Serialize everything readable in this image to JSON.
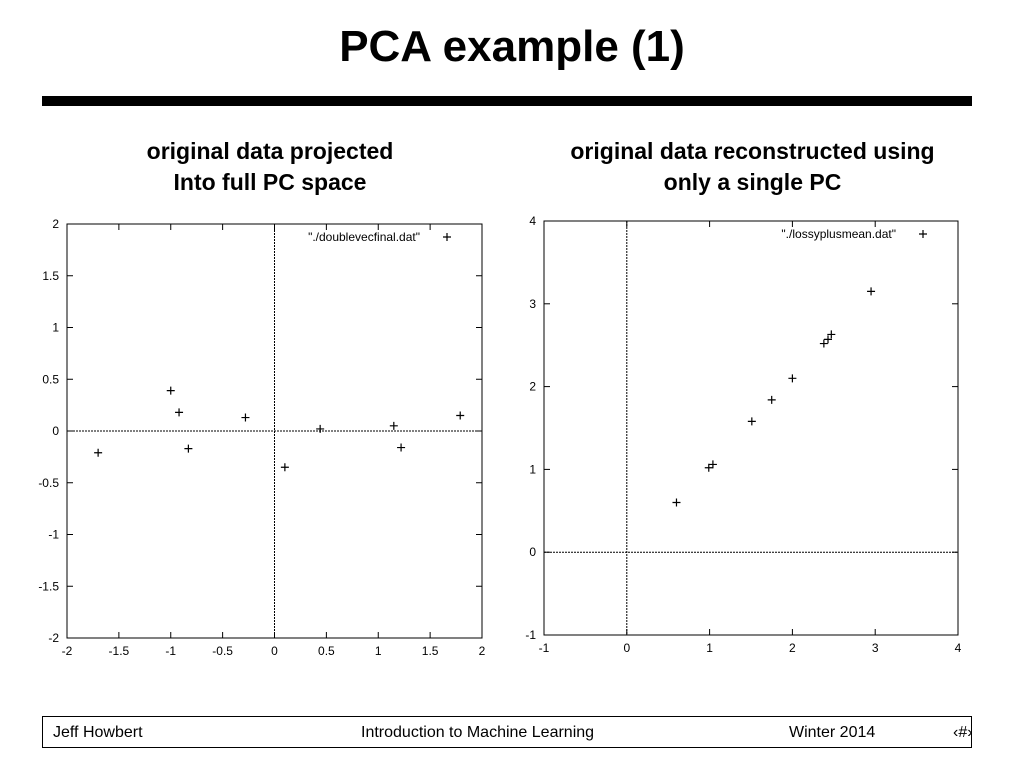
{
  "slide": {
    "title": "PCA example (1)",
    "left_caption": [
      "original data projected",
      "Into full PC space"
    ],
    "right_caption": [
      "original data reconstructed using",
      "only a single PC"
    ]
  },
  "footer": {
    "author": "Jeff Howbert",
    "course": "Introduction to Machine Learning",
    "term": "Winter 2014",
    "page": "‹#›"
  },
  "chart_data": [
    {
      "type": "scatter",
      "series": [
        {
          "name": "\"./doublevecfinal.dat\"",
          "x": [
            -1.7,
            -1.0,
            -0.92,
            -0.83,
            -0.28,
            0.1,
            0.44,
            1.15,
            1.22,
            1.79
          ],
          "y": [
            -0.21,
            0.39,
            0.18,
            -0.17,
            0.13,
            -0.35,
            0.02,
            0.05,
            -0.16,
            0.15
          ]
        }
      ],
      "xlim": [
        -2,
        2
      ],
      "ylim": [
        -2,
        2
      ],
      "xticks": [
        "-2",
        "-1.5",
        "-1",
        "-0.5",
        "0",
        "0.5",
        "1",
        "1.5",
        "2"
      ],
      "yticks": [
        "-2",
        "-1.5",
        "-1",
        "-0.5",
        "0",
        "0.5",
        "1",
        "1.5",
        "2"
      ],
      "legend": "top-right",
      "grid": false,
      "zero_axes": true
    },
    {
      "type": "scatter",
      "series": [
        {
          "name": "\"./lossyplusmean.dat\"",
          "x": [
            0.6,
            0.99,
            1.04,
            1.51,
            1.75,
            2.0,
            2.38,
            2.43,
            2.47,
            2.95
          ],
          "y": [
            0.6,
            1.02,
            1.06,
            1.58,
            1.84,
            2.1,
            2.52,
            2.57,
            2.63,
            3.15
          ]
        }
      ],
      "xlim": [
        -1,
        4
      ],
      "ylim": [
        -1,
        4
      ],
      "xticks": [
        "-1",
        "0",
        "1",
        "2",
        "3",
        "4"
      ],
      "yticks": [
        "-1",
        "0",
        "1",
        "2",
        "3",
        "4"
      ],
      "legend": "top-right",
      "grid": false,
      "zero_axes": true
    }
  ]
}
